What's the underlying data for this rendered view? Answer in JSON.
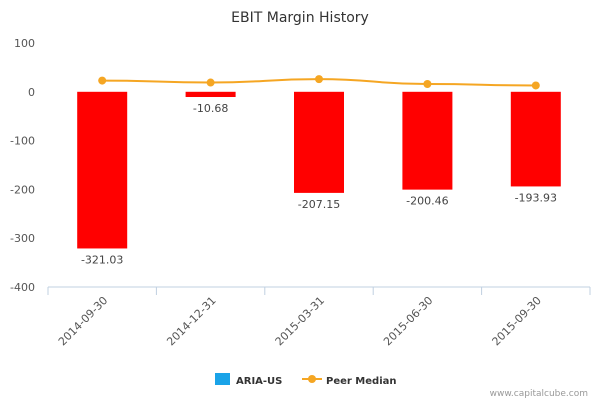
{
  "chart_data": {
    "type": "bar",
    "title": "EBIT Margin History",
    "categories": [
      "2014-09-30",
      "2014-12-31",
      "2015-03-31",
      "2015-06-30",
      "2015-09-30"
    ],
    "series": [
      {
        "name": "ARIA-US",
        "kind": "bar",
        "color": "#ff0000",
        "legend_color": "#1aa3e8",
        "values": [
          -321.03,
          -10.68,
          -207.15,
          -200.46,
          -193.93
        ],
        "labels": [
          "-321.03",
          "-10.68",
          "-207.15",
          "-200.46",
          "-193.93"
        ]
      },
      {
        "name": "Peer Median",
        "kind": "line",
        "color": "#f5a623",
        "values": [
          23,
          19,
          26,
          16,
          13
        ]
      }
    ],
    "yticks": [
      100,
      0,
      -100,
      -200,
      -300,
      -400
    ],
    "ylim": [
      -400,
      100
    ],
    "grid": false,
    "legend_position": "bottom-center"
  },
  "watermark": "www.capitalcube.com"
}
